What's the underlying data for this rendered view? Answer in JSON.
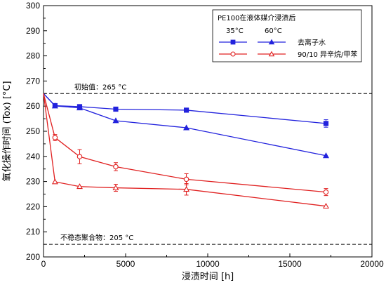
{
  "chart_data": {
    "type": "line",
    "xlabel": "浸渍时间 [h]",
    "ylabel": "氧化操作时间 (Tox) [°C]",
    "xlim": [
      0,
      20000
    ],
    "ylim": [
      200,
      300
    ],
    "xticks": [
      0,
      5000,
      10000,
      15000,
      20000
    ],
    "yticks": [
      200,
      210,
      220,
      230,
      240,
      250,
      260,
      270,
      280,
      290,
      300
    ],
    "grid": false,
    "legend": {
      "placement": "top-right",
      "title": "PE100在液体媒介浸渍后",
      "col_headers": [
        "35°C",
        "60°C"
      ],
      "row_labels": [
        "去离子水",
        "90/10 异辛烷/甲苯"
      ]
    },
    "reference_lines": [
      {
        "y": 265,
        "label": "初始值：265 °C"
      },
      {
        "y": 205,
        "label": "不稳态聚合物：205 °C"
      }
    ],
    "series": [
      {
        "name": "去离子水 35°C",
        "color": "#2222dd",
        "marker": "filled-square",
        "x": [
          0,
          700,
          2200,
          4400,
          8700,
          17200
        ],
        "y": [
          265,
          260.2,
          259.8,
          258.8,
          258.4,
          253.1
        ],
        "err": [
          0,
          0.6,
          0.5,
          0.4,
          0.4,
          1.5
        ]
      },
      {
        "name": "去离子水 60°C",
        "color": "#2222dd",
        "marker": "filled-triangle",
        "x": [
          0,
          700,
          2200,
          4400,
          8700,
          17200
        ],
        "y": [
          265,
          260.1,
          259.3,
          254.2,
          251.4,
          240.3
        ],
        "err": [
          0,
          0,
          0,
          0,
          0,
          0
        ]
      },
      {
        "name": "90/10 异辛烷/甲苯 35°C",
        "color": "#e02020",
        "marker": "open-circle",
        "x": [
          0,
          700,
          2200,
          4400,
          8700,
          17200
        ],
        "y": [
          265,
          247.5,
          239.9,
          235.9,
          230.9,
          225.8
        ],
        "err": [
          0,
          1.2,
          2.8,
          1.6,
          2.2,
          1.4
        ]
      },
      {
        "name": "90/10 异辛烷/甲苯 60°C",
        "color": "#e02020",
        "marker": "open-triangle",
        "x": [
          0,
          700,
          2200,
          4400,
          8700,
          17200
        ],
        "y": [
          265,
          229.9,
          228.0,
          227.5,
          226.9,
          220.2
        ],
        "err": [
          0,
          0,
          0,
          1.4,
          2.3,
          0
        ]
      }
    ]
  }
}
